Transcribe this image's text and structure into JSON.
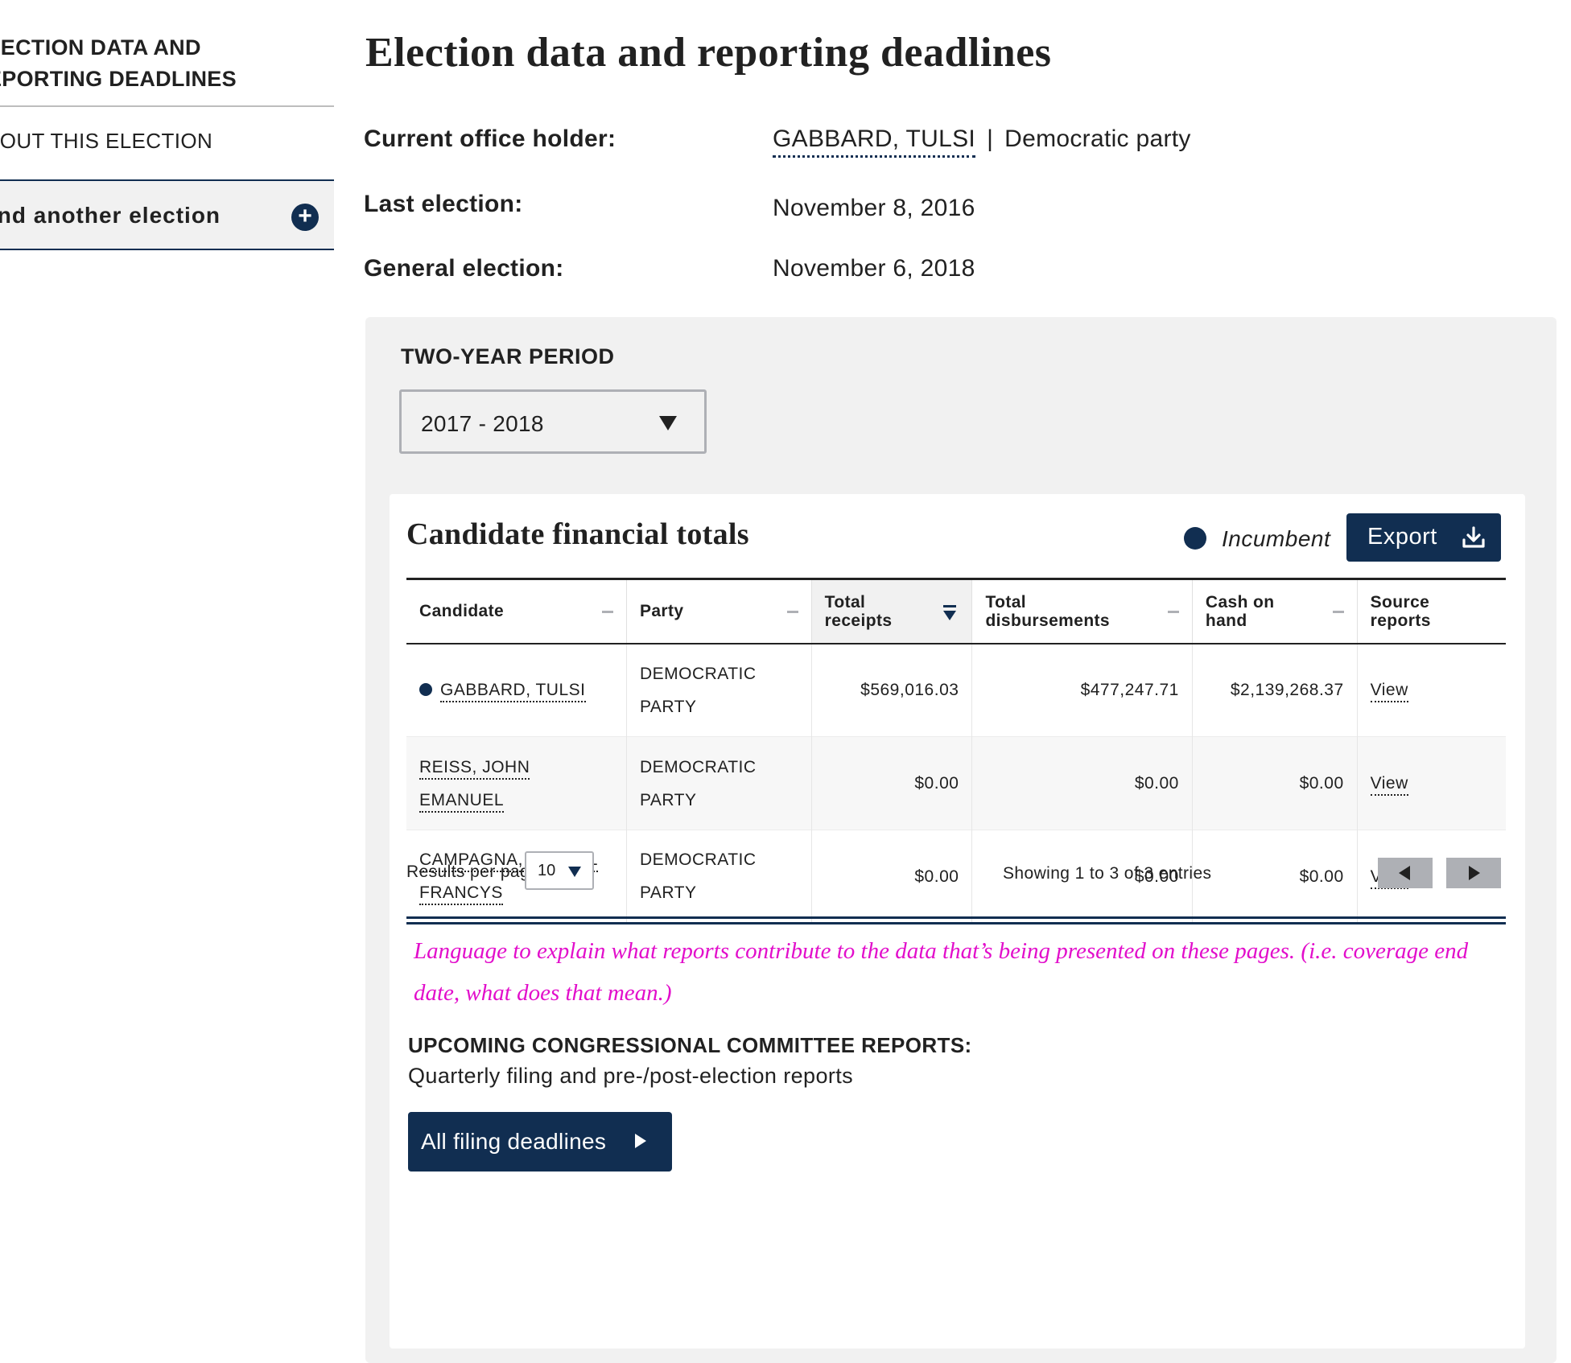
{
  "sidebar": {
    "title_line1": "LECTION DATA AND",
    "title_line2": "EPORTING DEADLINES",
    "about": "BOUT THIS ELECTION",
    "find": "ind another election",
    "find_icon": "plus-circle-icon"
  },
  "page": {
    "title": "Election data and reporting deadlines"
  },
  "info": {
    "holder_label": "Current office holder:",
    "holder_name": "GABBARD, TULSI",
    "holder_separator": "|",
    "holder_party": "Democratic party",
    "last_label": "Last election:",
    "last_value": "November 8, 2016",
    "general_label": "General election:",
    "general_value": "November 6, 2018"
  },
  "period": {
    "label": "TWO-YEAR PERIOD",
    "selected": "2017 - 2018"
  },
  "financial": {
    "title": "Candidate financial totals",
    "incumbent_label": "Incumbent",
    "export_label": "Export",
    "export_icon": "download-icon",
    "columns": [
      {
        "line1": "Candidate",
        "line2": ""
      },
      {
        "line1": "Party",
        "line2": ""
      },
      {
        "line1": "Total",
        "line2": "receipts"
      },
      {
        "line1": "Total",
        "line2": "disbursements"
      },
      {
        "line1": "Cash on",
        "line2": "hand"
      },
      {
        "line1": "Source",
        "line2": "reports"
      }
    ],
    "rows": [
      {
        "candidate_line1": "GABBARD, TULSI",
        "candidate_line2": "",
        "incumbent": true,
        "party_line1": "DEMOCRATIC",
        "party_line2": "PARTY",
        "receipts": "$569,016.03",
        "disbursements": "$477,247.71",
        "cash": "$2,139,268.37",
        "source": "View"
      },
      {
        "candidate_line1": "REISS, JOHN EMANUEL",
        "candidate_line2": "",
        "incumbent": false,
        "party_line1": "DEMOCRATIC",
        "party_line2": "PARTY",
        "receipts": "$0.00",
        "disbursements": "$0.00",
        "cash": "$0.00",
        "source": "View"
      },
      {
        "candidate_line1": "CAMPAGNA, SHERYL",
        "candidate_line2": "FRANCYS",
        "incumbent": false,
        "party_line1": "DEMOCRATIC",
        "party_line2": "PARTY",
        "receipts": "$0.00",
        "disbursements": "$0.00",
        "cash": "$0.00",
        "source": "View"
      }
    ],
    "results_per_page_label": "Results per page:",
    "results_per_page_value": "10",
    "showing": "Showing 1 to 3 of 3 entries"
  },
  "note": "Language to explain what reports contribute to the data that’s being presented on these pages. (i.e. coverage end date, what does that mean.)",
  "upcoming": {
    "title": "UPCOMING CONGRESSIONAL COMMITTEE REPORTS:",
    "text": "Quarterly filing and pre-/post-election reports",
    "button": "All filing deadlines"
  },
  "colors": {
    "navy": "#112e51",
    "gray_panel": "#f1f1f1",
    "note_magenta": "#e20ecb"
  }
}
